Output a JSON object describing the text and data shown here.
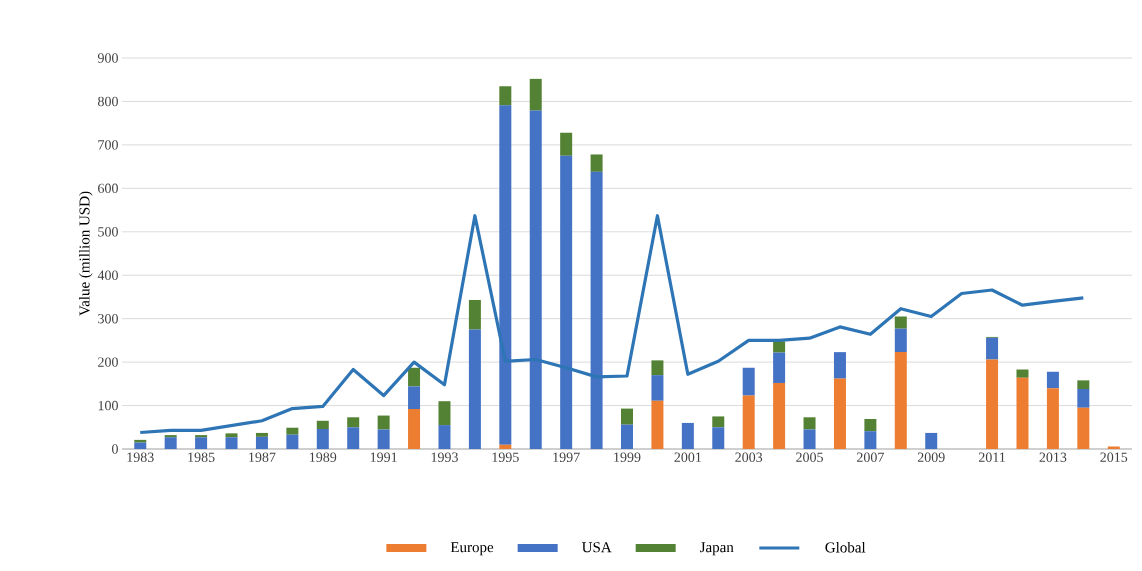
{
  "chart_data": {
    "type": "bar",
    "stacked": true,
    "categories": [
      "1983",
      null,
      "1985",
      null,
      "1987",
      null,
      "1989",
      null,
      "1991",
      null,
      "1993",
      null,
      "1995",
      null,
      "1997",
      null,
      "1999",
      null,
      "2001",
      null,
      "2003",
      null,
      "2005",
      null,
      "2007",
      null,
      "2009",
      null,
      "2011",
      null,
      "2013",
      null,
      "2015"
    ],
    "ylabel": "Value (million USD)",
    "ylim": [
      0,
      900
    ],
    "yticks": [
      0,
      100,
      200,
      300,
      400,
      500,
      600,
      700,
      800,
      900
    ],
    "grid": "y",
    "legend": "bottom",
    "series": [
      {
        "name": "Europe",
        "color": "#ed7d31",
        "values": [
          0,
          0,
          0,
          0,
          0,
          0,
          0,
          0,
          0,
          92,
          0,
          0,
          10,
          0,
          0,
          0,
          0,
          111,
          0,
          0,
          123,
          152,
          0,
          162,
          0,
          223,
          0,
          0,
          206,
          164,
          140,
          95,
          6
        ]
      },
      {
        "name": "USA",
        "color": "#4472c4",
        "values": [
          15,
          27,
          27,
          27,
          28,
          33,
          46,
          50,
          45,
          52,
          55,
          275,
          781,
          779,
          675,
          638,
          56,
          59,
          60,
          50,
          64,
          70,
          45,
          61,
          41,
          54,
          37,
          0,
          50,
          0,
          38,
          43,
          0
        ]
      },
      {
        "name": "Japan",
        "color": "#548235",
        "values": [
          6,
          5,
          5,
          9,
          9,
          16,
          19,
          23,
          32,
          43,
          55,
          68,
          44,
          73,
          53,
          40,
          37,
          34,
          0,
          25,
          0,
          26,
          28,
          0,
          28,
          28,
          0,
          0,
          2,
          19,
          0,
          20,
          0
        ]
      },
      {
        "name": "Global",
        "type": "line",
        "color": "#2e75b6",
        "values": [
          38,
          43,
          43,
          54,
          65,
          93,
          98,
          183,
          123,
          200,
          148,
          537,
          202,
          206,
          187,
          166,
          168,
          537,
          172,
          202,
          250,
          250,
          255,
          281,
          264,
          323,
          305,
          358,
          366,
          331,
          340,
          348,
          null
        ]
      }
    ]
  }
}
